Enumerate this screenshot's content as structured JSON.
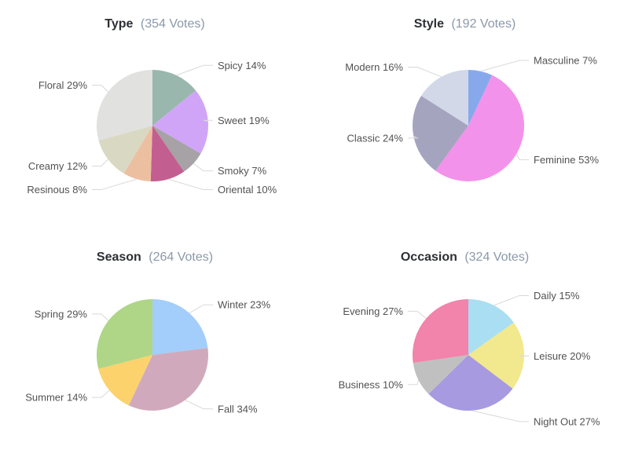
{
  "page": {
    "background": "#ffffff"
  },
  "style": {
    "title_color": "#2d2f33",
    "votes_color": "#8b99aa",
    "label_color": "#525252",
    "leader_line_color": "#d9d9d9"
  },
  "chart_data": [
    {
      "type": "pie",
      "title": "Type",
      "votes": 354,
      "votes_label": "(354 Votes)",
      "start": "top",
      "direction": "clockwise",
      "labels_position": "outside-with-leader-lines",
      "legend": false,
      "slices": [
        {
          "label": "Spicy",
          "pct": 14,
          "color": "#9ab7ae"
        },
        {
          "label": "Sweet",
          "pct": 19,
          "color": "#d0a5f7"
        },
        {
          "label": "Smoky",
          "pct": 7,
          "color": "#a6a2a6"
        },
        {
          "label": "Oriental",
          "pct": 10,
          "color": "#c35f90"
        },
        {
          "label": "Resinous",
          "pct": 8,
          "color": "#edbfa1"
        },
        {
          "label": "Creamy",
          "pct": 12,
          "color": "#d9d8c2"
        },
        {
          "label": "Floral",
          "pct": 29,
          "color": "#e1e1e0"
        }
      ]
    },
    {
      "type": "pie",
      "title": "Style",
      "votes": 192,
      "votes_label": "(192 Votes)",
      "start": "top",
      "direction": "clockwise",
      "labels_position": "outside-with-leader-lines",
      "legend": false,
      "slices": [
        {
          "label": "Masculine",
          "pct": 7,
          "color": "#87a9ec"
        },
        {
          "label": "Feminine",
          "pct": 53,
          "color": "#f392ea"
        },
        {
          "label": "Classic",
          "pct": 24,
          "color": "#a5a4bf"
        },
        {
          "label": "Modern",
          "pct": 16,
          "color": "#d2d8e8"
        }
      ]
    },
    {
      "type": "pie",
      "title": "Season",
      "votes": 264,
      "votes_label": "(264 Votes)",
      "start": "top",
      "direction": "clockwise",
      "labels_position": "outside-with-leader-lines",
      "legend": false,
      "slices": [
        {
          "label": "Winter",
          "pct": 23,
          "color": "#a3cdfa"
        },
        {
          "label": "Fall",
          "pct": 34,
          "color": "#d0aabc"
        },
        {
          "label": "Summer",
          "pct": 14,
          "color": "#fcd26d"
        },
        {
          "label": "Spring",
          "pct": 29,
          "color": "#aed686"
        }
      ]
    },
    {
      "type": "pie",
      "title": "Occasion",
      "votes": 324,
      "votes_label": "(324 Votes)",
      "start": "top",
      "direction": "clockwise",
      "labels_position": "outside-with-leader-lines",
      "legend": false,
      "slices": [
        {
          "label": "Daily",
          "pct": 15,
          "color": "#aadef2"
        },
        {
          "label": "Leisure",
          "pct": 20,
          "color": "#f2e88d"
        },
        {
          "label": "Night Out",
          "pct": 27,
          "color": "#a79ae0"
        },
        {
          "label": "Business",
          "pct": 10,
          "color": "#c0c0c0"
        },
        {
          "label": "Evening",
          "pct": 27,
          "color": "#f283aa"
        }
      ]
    }
  ]
}
